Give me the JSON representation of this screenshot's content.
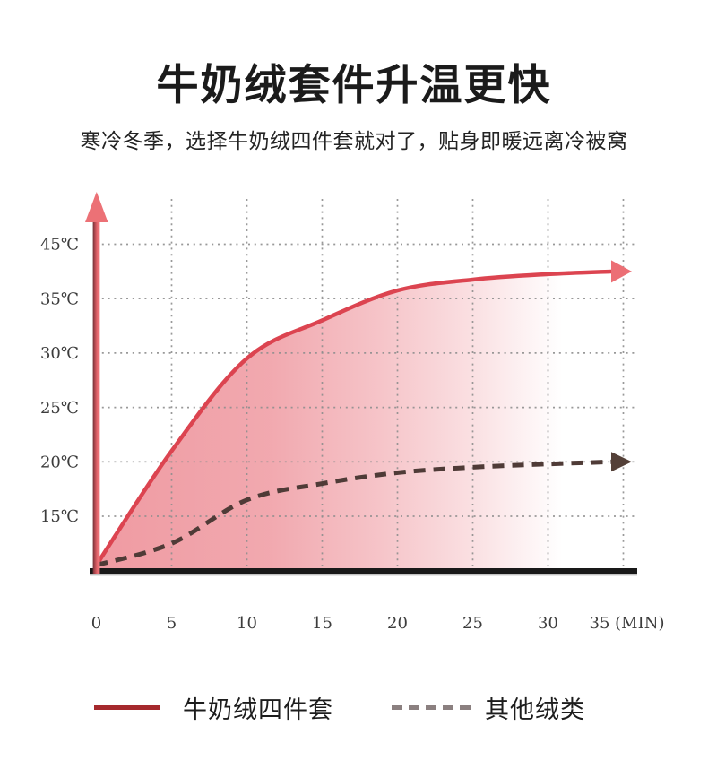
{
  "header": {
    "title": "牛奶绒套件升温更快",
    "subtitle": "寒冷冬季，选择牛奶绒四件套就对了，贴身即暖远离冷被窝"
  },
  "chart_data": {
    "type": "line",
    "title": "牛奶绒套件升温更快",
    "x": [
      0,
      5,
      10,
      15,
      20,
      25,
      30,
      35
    ],
    "x_tick_labels": [
      "0",
      "5",
      "10",
      "15",
      "20",
      "25",
      "30",
      "35 (MIN)"
    ],
    "x_unit": "MIN",
    "y_tick_labels": [
      "45℃",
      "35℃",
      "30℃",
      "25℃",
      "20℃",
      "15℃"
    ],
    "y_tick_values": [
      45,
      35,
      30,
      25,
      20,
      15
    ],
    "grid": "dotted",
    "legend_position": "bottom",
    "series": [
      {
        "name": "牛奶绒四件套",
        "line_style": "solid",
        "color": "#dc4450",
        "arrow_color": "#ec6f75",
        "area_fill": true,
        "values_c": [
          10.5,
          21,
          29.5,
          33,
          36.5,
          38.5,
          39.5,
          40
        ]
      },
      {
        "name": "其他绒类",
        "line_style": "dashed",
        "color": "#4f3b37",
        "arrow_color": "#544038",
        "area_fill": false,
        "values_c": [
          10.5,
          12.5,
          16.5,
          18,
          19,
          19.5,
          19.8,
          20
        ]
      }
    ]
  },
  "legend": {
    "items": [
      {
        "label": "牛奶绒四件套",
        "swatch": "solid-red-line"
      },
      {
        "label": "其他绒类",
        "swatch": "dashed-gray-line"
      }
    ]
  },
  "colors": {
    "title_text": "#1b1b1b",
    "subtitle_text": "#232323",
    "fill_pink": "#ee939b",
    "grid_dot": "#8e8e8e",
    "x_axis_bar": "#191919",
    "y_axis_arrow": "#ec7176",
    "tick_label": "#3c3c3c",
    "legend_solid_line": "#a5292d",
    "legend_dashed_line": "#8b8080"
  }
}
